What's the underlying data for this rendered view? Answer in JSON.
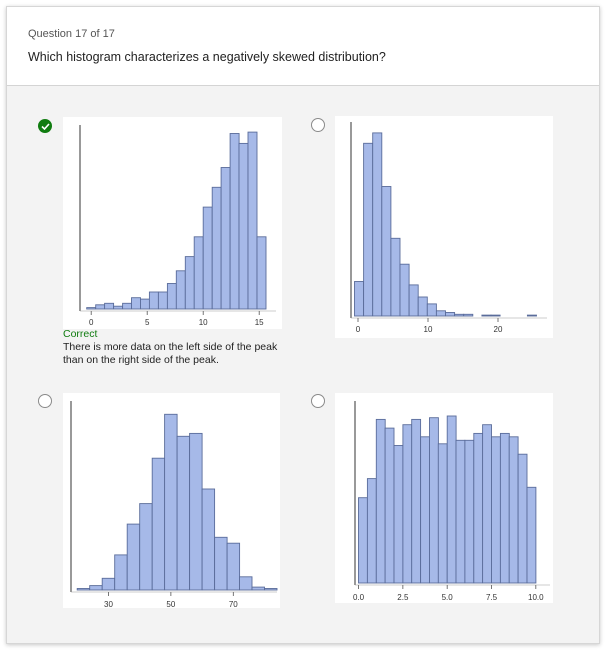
{
  "question": {
    "number_label": "Question 17 of 17",
    "text": "Which histogram characterizes a negatively skewed distribution?"
  },
  "colors": {
    "bar_fill": "#a6b9e8",
    "bar_stroke": "#5a6c9a",
    "correct_green": "#107c10"
  },
  "options": [
    {
      "id": "a",
      "selected": true,
      "correct": true,
      "feedback": {
        "title": "Correct",
        "text": "There is more data on the left side of the peak than on the right side of the peak."
      },
      "chart_data": {
        "type": "bar",
        "xlim": [
          -1,
          16.5
        ],
        "ylim": [
          0,
          100
        ],
        "xticks": [
          0,
          5,
          10,
          15
        ],
        "xtick_labels": [
          "0",
          "5",
          "10",
          "15"
        ],
        "bins": [
          [
            -0.4,
            0.4,
            1
          ],
          [
            0.4,
            1.2,
            3
          ],
          [
            1.2,
            2.0,
            4
          ],
          [
            2.0,
            2.8,
            2
          ],
          [
            2.8,
            3.6,
            4
          ],
          [
            3.6,
            4.4,
            8
          ],
          [
            4.4,
            5.2,
            7
          ],
          [
            5.2,
            6.0,
            12
          ],
          [
            6.0,
            6.8,
            12
          ],
          [
            6.8,
            7.6,
            18
          ],
          [
            7.6,
            8.4,
            27
          ],
          [
            8.4,
            9.2,
            37
          ],
          [
            9.2,
            10.0,
            51
          ],
          [
            10.0,
            10.8,
            72
          ],
          [
            10.8,
            11.6,
            86
          ],
          [
            11.6,
            12.4,
            100
          ],
          [
            12.4,
            13.2,
            124
          ],
          [
            13.2,
            14.0,
            117
          ],
          [
            14.0,
            14.8,
            125
          ],
          [
            14.8,
            15.6,
            51
          ]
        ]
      }
    },
    {
      "id": "b",
      "selected": false,
      "correct": false,
      "chart_data": {
        "type": "bar",
        "xlim": [
          -1,
          27
        ],
        "ylim": [
          0,
          100
        ],
        "xticks": [
          0,
          10,
          20
        ],
        "xtick_labels": [
          "0",
          "10",
          "20"
        ],
        "bins": [
          [
            -0.5,
            0.8,
            20
          ],
          [
            0.8,
            2.1,
            100
          ],
          [
            2.1,
            3.4,
            106
          ],
          [
            3.4,
            4.7,
            75
          ],
          [
            4.7,
            6.0,
            45
          ],
          [
            6.0,
            7.3,
            30
          ],
          [
            7.3,
            8.6,
            18
          ],
          [
            8.6,
            9.9,
            11
          ],
          [
            9.9,
            11.2,
            7
          ],
          [
            11.2,
            12.5,
            3
          ],
          [
            12.5,
            13.8,
            2
          ],
          [
            13.8,
            15.1,
            1
          ],
          [
            15.1,
            16.4,
            1
          ],
          [
            17.7,
            19.0,
            0.5
          ],
          [
            19.0,
            20.3,
            0.5
          ],
          [
            24.2,
            25.5,
            0.5
          ]
        ]
      }
    },
    {
      "id": "c",
      "selected": false,
      "correct": false,
      "chart_data": {
        "type": "bar",
        "xlim": [
          18,
          84
        ],
        "ylim": [
          0,
          100
        ],
        "xticks": [
          30,
          50,
          70
        ],
        "xtick_labels": [
          "30",
          "50",
          "70"
        ],
        "bins": [
          [
            20,
            24,
            1
          ],
          [
            24,
            28,
            3
          ],
          [
            28,
            32,
            8
          ],
          [
            32,
            36,
            24
          ],
          [
            36,
            40,
            45
          ],
          [
            40,
            44,
            59
          ],
          [
            44,
            48,
            90
          ],
          [
            48,
            52,
            120
          ],
          [
            52,
            56,
            105
          ],
          [
            56,
            60,
            107
          ],
          [
            60,
            64,
            69
          ],
          [
            64,
            68,
            36
          ],
          [
            68,
            72,
            32
          ],
          [
            72,
            76,
            9
          ],
          [
            76,
            80,
            2
          ],
          [
            80,
            84,
            1
          ]
        ]
      }
    },
    {
      "id": "d",
      "selected": false,
      "correct": false,
      "chart_data": {
        "type": "bar",
        "xlim": [
          -0.2,
          10.8
        ],
        "ylim": [
          0,
          100
        ],
        "xticks": [
          0,
          2.5,
          5,
          7.5,
          10
        ],
        "xtick_labels": [
          "0.0",
          "2.5",
          "5.0",
          "7.5",
          "10.0"
        ],
        "bins": [
          [
            0,
            0.5,
            49
          ],
          [
            0.5,
            1,
            60
          ],
          [
            1,
            1.5,
            94
          ],
          [
            1.5,
            2,
            89
          ],
          [
            2,
            2.5,
            79
          ],
          [
            2.5,
            3,
            91
          ],
          [
            3,
            3.5,
            94
          ],
          [
            3.5,
            4,
            84
          ],
          [
            4,
            4.5,
            95
          ],
          [
            4.5,
            5,
            80
          ],
          [
            5,
            5.5,
            96
          ],
          [
            5.5,
            6,
            82
          ],
          [
            6,
            6.5,
            82
          ],
          [
            6.5,
            7,
            86
          ],
          [
            7,
            7.5,
            91
          ],
          [
            7.5,
            8,
            84
          ],
          [
            8,
            8.5,
            86
          ],
          [
            8.5,
            9,
            84
          ],
          [
            9,
            9.5,
            74
          ],
          [
            9.5,
            10,
            55
          ]
        ]
      }
    }
  ]
}
